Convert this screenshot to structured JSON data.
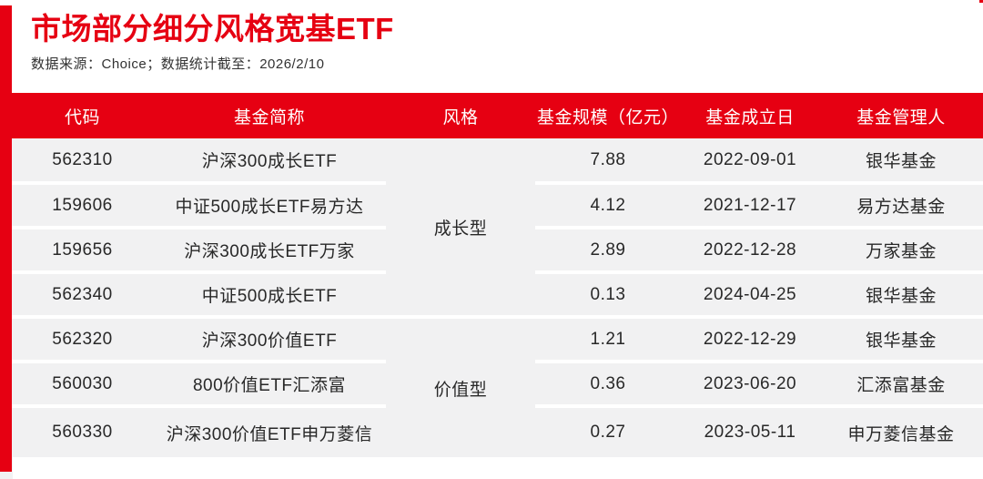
{
  "header": {
    "title": "市场部分细分风格宽基ETF",
    "source_note": "数据来源：Choice；数据统计截至：2026/2/10"
  },
  "colors": {
    "accent_red": "#e60012",
    "row_bg": "#f1f1f2",
    "header_text": "#ffffff",
    "body_text": "#282828"
  },
  "table": {
    "columns": [
      "代码",
      "基金简称",
      "风格",
      "基金规模（亿元）",
      "基金成立日",
      "基金管理人"
    ],
    "style_groups": [
      {
        "style": "成长型",
        "rows": [
          {
            "code": "562310",
            "name": "沪深300成长ETF",
            "scale": "7.88",
            "inception": "2022-09-01",
            "manager": "银华基金"
          },
          {
            "code": "159606",
            "name": "中证500成长ETF易方达",
            "scale": "4.12",
            "inception": "2021-12-17",
            "manager": "易方达基金"
          },
          {
            "code": "159656",
            "name": "沪深300成长ETF万家",
            "scale": "2.89",
            "inception": "2022-12-28",
            "manager": "万家基金"
          },
          {
            "code": "562340",
            "name": "中证500成长ETF",
            "scale": "0.13",
            "inception": "2024-04-25",
            "manager": "银华基金"
          }
        ]
      },
      {
        "style": "价值型",
        "rows": [
          {
            "code": "562320",
            "name": "沪深300价值ETF",
            "scale": "1.21",
            "inception": "2022-12-29",
            "manager": "银华基金"
          },
          {
            "code": "560030",
            "name": "800价值ETF汇添富",
            "scale": "0.36",
            "inception": "2023-06-20",
            "manager": "汇添富基金"
          },
          {
            "code": "560330",
            "name": "沪深300价值ETF申万菱信",
            "scale": "0.27",
            "inception": "2023-05-11",
            "manager": "申万菱信基金"
          }
        ]
      }
    ]
  },
  "chart_data": {
    "type": "table",
    "title": "市场部分细分风格宽基ETF",
    "source": "数据来源：Choice；数据统计截至：2026/2/10",
    "columns": [
      "代码",
      "基金简称",
      "风格",
      "基金规模（亿元）",
      "基金成立日",
      "基金管理人"
    ],
    "rows": [
      [
        "562310",
        "沪深300成长ETF",
        "成长型",
        "7.88",
        "2022-09-01",
        "银华基金"
      ],
      [
        "159606",
        "中证500成长ETF易方达",
        "成长型",
        "4.12",
        "2021-12-17",
        "易方达基金"
      ],
      [
        "159656",
        "沪深300成长ETF万家",
        "成长型",
        "2.89",
        "2022-12-28",
        "万家基金"
      ],
      [
        "562340",
        "中证500成长ETF",
        "成长型",
        "0.13",
        "2024-04-25",
        "银华基金"
      ],
      [
        "562320",
        "沪深300价值ETF",
        "价值型",
        "1.21",
        "2022-12-29",
        "银华基金"
      ],
      [
        "560030",
        "800价值ETF汇添富",
        "价值型",
        "0.36",
        "2023-06-20",
        "汇添富基金"
      ],
      [
        "560330",
        "沪深300价值ETF申万菱信",
        "价值型",
        "0.27",
        "2023-05-11",
        "申万菱信基金"
      ]
    ]
  }
}
